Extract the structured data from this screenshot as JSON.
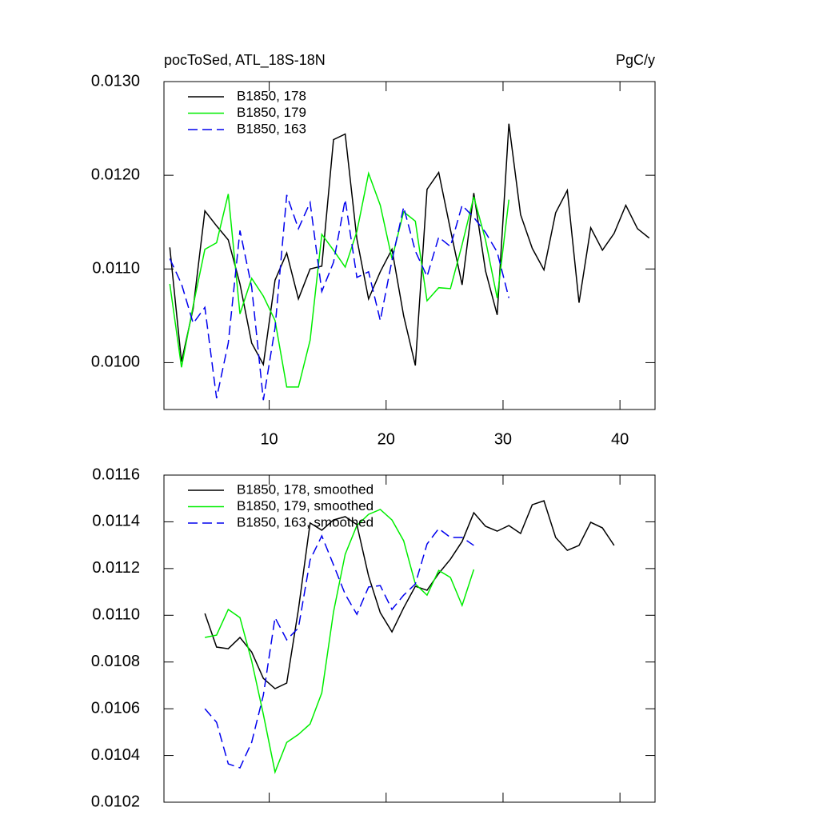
{
  "chart_data": [
    {
      "type": "line",
      "title": "pocToSed, ATL_18S-18N",
      "units": "PgC/y",
      "xlim": [
        1,
        43
      ],
      "xticks": [
        10,
        20,
        30,
        40
      ],
      "ylim": [
        0.0095,
        0.013
      ],
      "yticks": [
        {
          "value": 0.01,
          "label": "0.0100"
        },
        {
          "value": 0.011,
          "label": "0.0110"
        },
        {
          "value": 0.012,
          "label": "0.0120"
        },
        {
          "value": 0.013,
          "label": "0.0130"
        }
      ],
      "legend": "top-left",
      "series": [
        {
          "name": "B1850, 178",
          "color": "#000000",
          "dashed": false,
          "x": [
            1.5,
            2.5,
            3.5,
            4.5,
            5.5,
            6.5,
            7.5,
            8.5,
            9.5,
            10.5,
            11.5,
            12.5,
            13.5,
            14.5,
            15.5,
            16.5,
            17.5,
            18.5,
            19.5,
            20.5,
            21.5,
            22.5,
            23.5,
            24.5,
            25.5,
            26.5,
            27.5,
            28.5,
            29.5,
            30.5,
            31.5,
            32.5,
            33.5,
            34.5,
            35.5,
            36.5,
            37.5,
            38.5,
            39.5,
            40.5,
            41.5,
            42.5
          ],
          "values": [
            0.01123,
            0.01001,
            0.01058,
            0.01162,
            0.01146,
            0.01131,
            0.01084,
            0.01021,
            0.00998,
            0.01088,
            0.01117,
            0.01068,
            0.011,
            0.01103,
            0.01238,
            0.01244,
            0.01132,
            0.01068,
            0.01097,
            0.01121,
            0.0105,
            0.00997,
            0.01185,
            0.01203,
            0.01142,
            0.01083,
            0.01181,
            0.01098,
            0.01051,
            0.01255,
            0.01158,
            0.01122,
            0.01099,
            0.0116,
            0.01184,
            0.01064,
            0.01144,
            0.0112,
            0.01138,
            0.01168,
            0.01143,
            0.01133
          ]
        },
        {
          "name": "B1850, 179",
          "color": "#00ee00",
          "dashed": false,
          "x": [
            1.5,
            2.5,
            3.5,
            4.5,
            5.5,
            6.5,
            7.5,
            8.5,
            9.5,
            10.5,
            11.5,
            12.5,
            13.5,
            14.5,
            15.5,
            16.5,
            17.5,
            18.5,
            19.5,
            20.5,
            21.5,
            22.5,
            23.5,
            24.5,
            25.5,
            26.5,
            27.5,
            28.5,
            29.5,
            30.5
          ],
          "values": [
            0.01084,
            0.00995,
            0.01061,
            0.01121,
            0.01128,
            0.0118,
            0.01052,
            0.0109,
            0.01071,
            0.01045,
            0.00974,
            0.00974,
            0.01024,
            0.01137,
            0.0112,
            0.01102,
            0.0114,
            0.01202,
            0.01168,
            0.01111,
            0.01161,
            0.01151,
            0.01066,
            0.0108,
            0.01079,
            0.01126,
            0.01177,
            0.01131,
            0.01069,
            0.01174
          ]
        },
        {
          "name": "B1850, 163",
          "color": "#0000ee",
          "dashed": true,
          "x": [
            1.5,
            2.5,
            3.5,
            4.5,
            5.5,
            6.5,
            7.5,
            8.5,
            9.5,
            10.5,
            11.5,
            12.5,
            13.5,
            14.5,
            15.5,
            16.5,
            17.5,
            18.5,
            19.5,
            20.5,
            21.5,
            22.5,
            23.5,
            24.5,
            25.5,
            26.5,
            27.5,
            28.5,
            29.5,
            30.5
          ],
          "values": [
            0.01111,
            0.01084,
            0.01042,
            0.01059,
            0.00962,
            0.01021,
            0.01141,
            0.01081,
            0.0096,
            0.01037,
            0.01179,
            0.01143,
            0.01171,
            0.01076,
            0.01107,
            0.01174,
            0.01091,
            0.01097,
            0.01045,
            0.01109,
            0.01166,
            0.01119,
            0.01092,
            0.01134,
            0.01124,
            0.01168,
            0.01155,
            0.01139,
            0.01118,
            0.01069
          ]
        }
      ]
    },
    {
      "type": "line",
      "xlim": [
        1,
        43
      ],
      "xticks": [
        10,
        20,
        30,
        40
      ],
      "ylim": [
        0.0102,
        0.0116
      ],
      "yticks": [
        {
          "value": 0.0102,
          "label": "0.0102"
        },
        {
          "value": 0.0104,
          "label": "0.0104"
        },
        {
          "value": 0.0106,
          "label": "0.0106"
        },
        {
          "value": 0.0108,
          "label": "0.0108"
        },
        {
          "value": 0.011,
          "label": "0.0110"
        },
        {
          "value": 0.0112,
          "label": "0.0112"
        },
        {
          "value": 0.0114,
          "label": "0.0114"
        },
        {
          "value": 0.0116,
          "label": "0.0116"
        }
      ],
      "legend": "top-left",
      "series": [
        {
          "name": "B1850, 178, smoothed",
          "color": "#000000",
          "dashed": false,
          "x": [
            4.5,
            5.5,
            6.5,
            7.5,
            8.5,
            9.5,
            10.5,
            11.5,
            12.5,
            13.5,
            14.5,
            15.5,
            16.5,
            17.5,
            18.5,
            19.5,
            20.5,
            21.5,
            22.5,
            23.5,
            24.5,
            25.5,
            26.5,
            27.5,
            28.5,
            29.5,
            30.5,
            31.5,
            32.5,
            33.5,
            34.5,
            35.5,
            36.5,
            37.5,
            38.5,
            39.5
          ],
          "values": [
            0.011008,
            0.010864,
            0.010857,
            0.010905,
            0.010843,
            0.01073,
            0.010686,
            0.01071,
            0.011025,
            0.011395,
            0.011364,
            0.011408,
            0.011422,
            0.011388,
            0.011168,
            0.011011,
            0.010929,
            0.011032,
            0.011124,
            0.011107,
            0.011179,
            0.01124,
            0.011316,
            0.011439,
            0.011381,
            0.01136,
            0.011384,
            0.01135,
            0.011473,
            0.01149,
            0.011333,
            0.011278,
            0.011299,
            0.011398,
            0.011374,
            0.011299
          ]
        },
        {
          "name": "B1850, 179, smoothed",
          "color": "#00ee00",
          "dashed": false,
          "x": [
            4.5,
            5.5,
            6.5,
            7.5,
            8.5,
            9.5,
            10.5,
            11.5,
            12.5,
            13.5,
            14.5,
            15.5,
            16.5,
            17.5,
            18.5,
            19.5,
            20.5,
            21.5,
            22.5,
            23.5,
            24.5,
            25.5,
            26.5,
            27.5
          ],
          "values": [
            0.010905,
            0.010915,
            0.011025,
            0.01099,
            0.010805,
            0.010576,
            0.010329,
            0.010456,
            0.01049,
            0.010535,
            0.010668,
            0.011014,
            0.011261,
            0.011384,
            0.011432,
            0.011453,
            0.011408,
            0.011319,
            0.011134,
            0.011086,
            0.011192,
            0.011162,
            0.011042,
            0.011196
          ]
        },
        {
          "name": "B1850, 163, smoothed",
          "color": "#0000ee",
          "dashed": true,
          "x": [
            4.5,
            5.5,
            6.5,
            7.5,
            8.5,
            9.5,
            10.5,
            11.5,
            12.5,
            13.5,
            14.5,
            15.5,
            16.5,
            17.5,
            18.5,
            19.5,
            20.5,
            21.5,
            22.5,
            23.5,
            24.5,
            25.5,
            26.5,
            27.5
          ],
          "values": [
            0.0106,
            0.010542,
            0.010364,
            0.010347,
            0.010456,
            0.010658,
            0.01099,
            0.010895,
            0.010946,
            0.011237,
            0.01134,
            0.011216,
            0.01109,
            0.011004,
            0.011121,
            0.011127,
            0.011025,
            0.011086,
            0.011134,
            0.011305,
            0.011371,
            0.011333,
            0.011333,
            0.011299
          ]
        }
      ]
    }
  ]
}
